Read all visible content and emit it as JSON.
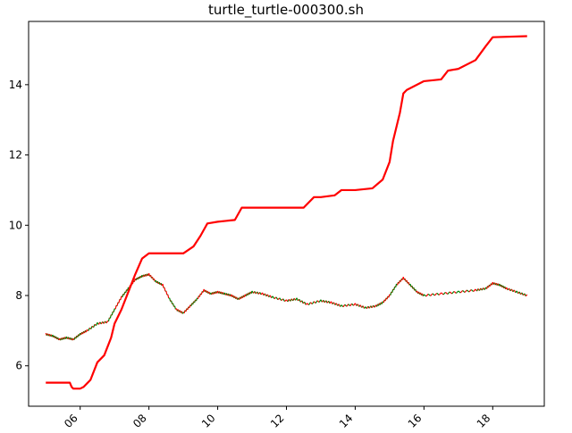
{
  "chart_data": {
    "type": "line",
    "title": "turtle_turtle-000300.sh",
    "xlabel": "",
    "ylabel": "",
    "x_tick_labels": [
      "06",
      "08",
      "10",
      "12",
      "14",
      "16",
      "18"
    ],
    "x_tick_values": [
      2006,
      2008,
      2010,
      2012,
      2014,
      2016,
      2018
    ],
    "xlim": [
      2004.5,
      2019.5
    ],
    "y_ticks": [
      6,
      8,
      10,
      12,
      14
    ],
    "ylim": [
      4.85,
      15.8
    ],
    "grid": false,
    "colors": {
      "equity": "#ff0000",
      "price_up": "#ff0000",
      "price_down": "#008000",
      "axes": "#000000"
    },
    "series": [
      {
        "role": "equity",
        "x": [
          2005.0,
          2005.7,
          2005.75,
          2005.8,
          2006.0,
          2006.1,
          2006.2,
          2006.3,
          2006.5,
          2006.7,
          2006.9,
          2007.0,
          2007.2,
          2007.4,
          2007.6,
          2007.8,
          2008.0,
          2008.5,
          2009.0,
          2009.3,
          2009.5,
          2009.7,
          2010.0,
          2010.5,
          2010.7,
          2011.0,
          2011.5,
          2012.0,
          2012.5,
          2012.8,
          2013.0,
          2013.4,
          2013.6,
          2014.0,
          2014.5,
          2014.8,
          2015.0,
          2015.1,
          2015.3,
          2015.4,
          2015.5,
          2016.0,
          2016.5,
          2016.7,
          2017.0,
          2017.5,
          2017.8,
          2018.0,
          2019.0
        ],
        "y": [
          5.52,
          5.52,
          5.4,
          5.35,
          5.35,
          5.4,
          5.5,
          5.6,
          6.1,
          6.3,
          6.8,
          7.2,
          7.6,
          8.1,
          8.6,
          9.05,
          9.2,
          9.2,
          9.2,
          9.4,
          9.7,
          10.05,
          10.1,
          10.15,
          10.5,
          10.5,
          10.5,
          10.5,
          10.5,
          10.8,
          10.8,
          10.85,
          11.0,
          11.0,
          11.05,
          11.3,
          11.8,
          12.4,
          13.2,
          13.75,
          13.85,
          14.1,
          14.15,
          14.4,
          14.45,
          14.7,
          15.1,
          15.35,
          15.38
        ]
      },
      {
        "role": "price",
        "x": [
          2005.0,
          2005.2,
          2005.4,
          2005.6,
          2005.8,
          2006.0,
          2006.2,
          2006.5,
          2006.8,
          2007.0,
          2007.2,
          2007.4,
          2007.6,
          2007.8,
          2008.0,
          2008.2,
          2008.4,
          2008.6,
          2008.8,
          2009.0,
          2009.2,
          2009.4,
          2009.6,
          2009.8,
          2010.0,
          2010.2,
          2010.4,
          2010.6,
          2010.8,
          2011.0,
          2011.3,
          2011.6,
          2012.0,
          2012.3,
          2012.6,
          2013.0,
          2013.3,
          2013.6,
          2014.0,
          2014.3,
          2014.6,
          2014.8,
          2015.0,
          2015.2,
          2015.4,
          2015.6,
          2015.8,
          2016.0,
          2016.5,
          2017.0,
          2017.5,
          2017.8,
          2018.0,
          2018.2,
          2018.4,
          2018.7,
          2019.0
        ],
        "y": [
          6.9,
          6.85,
          6.75,
          6.8,
          6.75,
          6.9,
          7.0,
          7.2,
          7.25,
          7.6,
          7.95,
          8.2,
          8.45,
          8.55,
          8.6,
          8.4,
          8.3,
          7.9,
          7.6,
          7.5,
          7.7,
          7.9,
          8.15,
          8.05,
          8.1,
          8.05,
          8.0,
          7.9,
          8.0,
          8.1,
          8.05,
          7.95,
          7.85,
          7.9,
          7.75,
          7.85,
          7.8,
          7.7,
          7.75,
          7.65,
          7.7,
          7.8,
          8.0,
          8.3,
          8.5,
          8.3,
          8.1,
          8.0,
          8.05,
          8.1,
          8.15,
          8.2,
          8.35,
          8.3,
          8.2,
          8.1,
          8.0
        ]
      }
    ]
  }
}
